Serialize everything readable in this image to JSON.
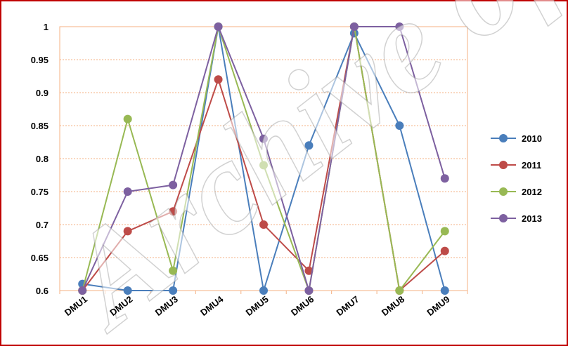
{
  "watermark": {
    "text": "Archive of SID"
  },
  "chart_data": {
    "type": "line",
    "title": "",
    "xlabel": "",
    "ylabel": "",
    "categories": [
      "DMU1",
      "DMU2",
      "DMU3",
      "DMU4",
      "DMU5",
      "DMU6",
      "DMU7",
      "DMU8",
      "DMU9"
    ],
    "ylim": [
      0.6,
      1
    ],
    "yticks": [
      "0.6",
      "0.65",
      "0.7",
      "0.75",
      "0.8",
      "0.85",
      "0.9",
      "0.95",
      "1"
    ],
    "grid": true,
    "legend_position": "right",
    "plot_background": "#ffffff",
    "grid_color": "#f4b183",
    "series": [
      {
        "name": "2010",
        "color": "#4a7ebb",
        "values": [
          0.61,
          0.6,
          0.6,
          1,
          0.6,
          0.82,
          0.99,
          0.85,
          0.6
        ]
      },
      {
        "name": "2011",
        "color": "#be4b48",
        "values": [
          0.6,
          0.69,
          0.72,
          0.92,
          0.7,
          0.63,
          1,
          0.6,
          0.66
        ]
      },
      {
        "name": "2012",
        "color": "#98b954",
        "values": [
          0.6,
          0.86,
          0.63,
          1,
          0.79,
          0.6,
          1,
          0.6,
          0.69
        ]
      },
      {
        "name": "2013",
        "color": "#7d60a0",
        "values": [
          0.6,
          0.75,
          0.76,
          1,
          0.83,
          0.6,
          1,
          1,
          0.77
        ]
      }
    ]
  }
}
